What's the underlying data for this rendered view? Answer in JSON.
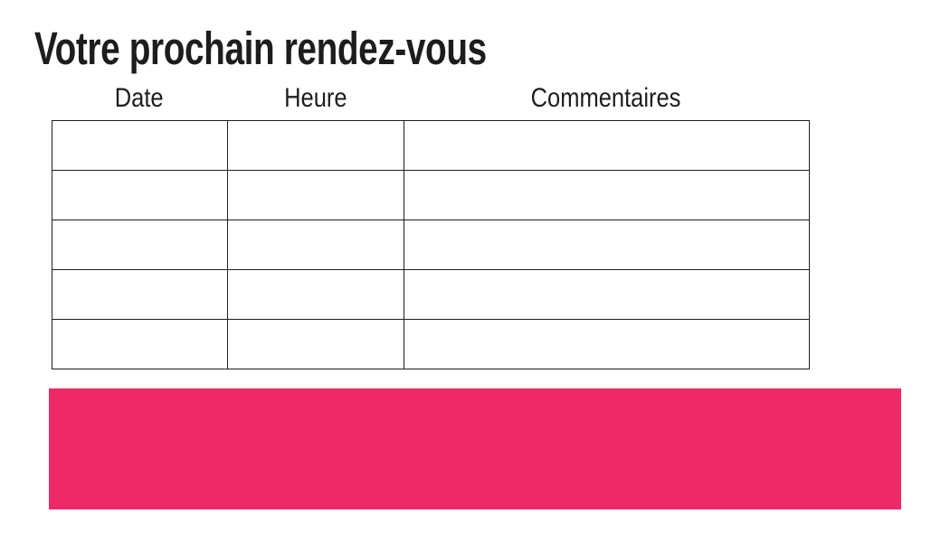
{
  "page": {
    "title": "Votre prochain rendez-vous"
  },
  "table": {
    "columns": [
      {
        "key": "date",
        "label": "Date"
      },
      {
        "key": "heure",
        "label": "Heure"
      },
      {
        "key": "commentaires",
        "label": "Commentaires"
      }
    ],
    "rows": [
      {
        "date": "",
        "heure": "",
        "commentaires": ""
      },
      {
        "date": "",
        "heure": "",
        "commentaires": ""
      },
      {
        "date": "",
        "heure": "",
        "commentaires": ""
      },
      {
        "date": "",
        "heure": "",
        "commentaires": ""
      },
      {
        "date": "",
        "heure": "",
        "commentaires": ""
      }
    ]
  },
  "colors": {
    "accent_pink": "#ED2A67",
    "border": "#1d1d1b",
    "text": "#1d1d1b",
    "background": "#ffffff"
  }
}
